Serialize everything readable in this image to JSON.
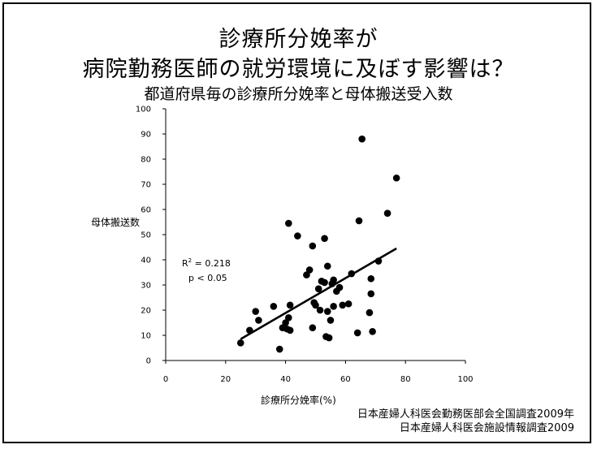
{
  "slide": {
    "title_line1": "診療所分娩率が",
    "title_line2": "病院勤務医師の就労環境に及ぼす影響は？",
    "subtitle": "都道府県毎の診療所分娩率と母体搬送受入数",
    "source_line1": "日本産婦人科医会勤務医部会全国調査2009年",
    "source_line2": "日本産婦人科医会施設情報調査2009"
  },
  "chart_data": {
    "type": "scatter",
    "title": "都道府県毎の診療所分娩率と母体搬送受入数",
    "xlabel": "診療所分娩率(%)",
    "ylabel": "母体搬送数",
    "xlim": [
      0,
      100
    ],
    "ylim": [
      0,
      100
    ],
    "xticks": [
      0,
      20,
      40,
      60,
      80,
      100
    ],
    "yticks": [
      0,
      10,
      20,
      30,
      40,
      50,
      60,
      70,
      80,
      90,
      100
    ],
    "grid": false,
    "annotation": {
      "r2_label": "R",
      "r2_sup": "2",
      "r2_value": " = 0.218",
      "p_label": "p  < 0.05"
    },
    "trendline": {
      "x": [
        25,
        77
      ],
      "y": [
        8.5,
        44.5
      ]
    },
    "points": [
      {
        "x": 25,
        "y": 7
      },
      {
        "x": 28,
        "y": 12
      },
      {
        "x": 30,
        "y": 19.5
      },
      {
        "x": 31,
        "y": 16
      },
      {
        "x": 36,
        "y": 21.5
      },
      {
        "x": 38,
        "y": 4.5
      },
      {
        "x": 39,
        "y": 13
      },
      {
        "x": 40,
        "y": 15
      },
      {
        "x": 40.5,
        "y": 12.5
      },
      {
        "x": 41,
        "y": 54.5
      },
      {
        "x": 41,
        "y": 17
      },
      {
        "x": 41.5,
        "y": 22
      },
      {
        "x": 41.5,
        "y": 12
      },
      {
        "x": 44,
        "y": 49.5
      },
      {
        "x": 47,
        "y": 34
      },
      {
        "x": 48,
        "y": 36
      },
      {
        "x": 49,
        "y": 13
      },
      {
        "x": 49,
        "y": 45.5
      },
      {
        "x": 49.5,
        "y": 23
      },
      {
        "x": 50,
        "y": 22
      },
      {
        "x": 51,
        "y": 28.5
      },
      {
        "x": 51.5,
        "y": 20
      },
      {
        "x": 52,
        "y": 31.5
      },
      {
        "x": 53,
        "y": 48.5
      },
      {
        "x": 53,
        "y": 31
      },
      {
        "x": 53.5,
        "y": 9.5
      },
      {
        "x": 54,
        "y": 37.5
      },
      {
        "x": 54,
        "y": 19.5
      },
      {
        "x": 54.5,
        "y": 9
      },
      {
        "x": 55,
        "y": 16
      },
      {
        "x": 55.5,
        "y": 30.5
      },
      {
        "x": 56,
        "y": 21.5
      },
      {
        "x": 56,
        "y": 32
      },
      {
        "x": 57,
        "y": 27.5
      },
      {
        "x": 58,
        "y": 29
      },
      {
        "x": 59,
        "y": 22
      },
      {
        "x": 61,
        "y": 22.5
      },
      {
        "x": 62,
        "y": 34.5
      },
      {
        "x": 64,
        "y": 11
      },
      {
        "x": 64.5,
        "y": 55.5
      },
      {
        "x": 65.5,
        "y": 88
      },
      {
        "x": 68,
        "y": 19
      },
      {
        "x": 68.5,
        "y": 26.5
      },
      {
        "x": 68.5,
        "y": 32.5
      },
      {
        "x": 69,
        "y": 11.5
      },
      {
        "x": 71,
        "y": 39.5
      },
      {
        "x": 74,
        "y": 58.5
      },
      {
        "x": 77,
        "y": 72.5
      }
    ],
    "colors": {
      "marker": "#000000",
      "axis": "#000000"
    }
  }
}
